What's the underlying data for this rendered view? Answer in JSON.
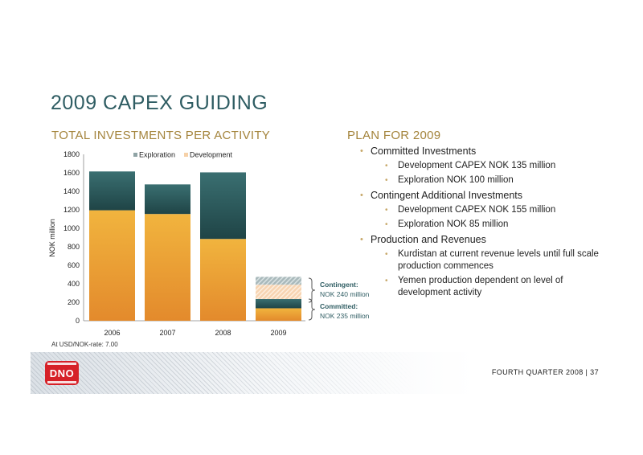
{
  "title": "2009 CAPEX GUIDING",
  "left_section_title": "TOTAL INVESTMENTS PER ACTIVITY",
  "right_section_title": "PLAN FOR 2009",
  "footnote": "At USD/NOK-rate: 7.00",
  "plan": {
    "committed": "Committed Investments",
    "committed_items": [
      "Development CAPEX NOK 135 million",
      "Exploration NOK 100 million"
    ],
    "contingent": "Contingent Additional Investments",
    "contingent_items": [
      "Development CAPEX NOK 155 million",
      "Exploration NOK 85 million"
    ],
    "production": "Production and Revenues",
    "production_items": [
      "Kurdistan at current revenue levels until full scale production commences",
      "Yemen production dependent on level of development activity"
    ]
  },
  "footer": {
    "logo": "DNO",
    "text": "FOURTH QUARTER 2008 |   37"
  },
  "colors": {
    "development": "#e8a535",
    "exploration": "#2e5e60",
    "title": "#2f5d63",
    "section": "#a4843c"
  },
  "chart_data": {
    "type": "bar",
    "stacked": true,
    "categories": [
      "2006",
      "2007",
      "2008",
      "2009"
    ],
    "series": [
      {
        "name": "Development",
        "values": [
          1195,
          1155,
          885,
          135
        ],
        "color": "#e8a535"
      },
      {
        "name": "Exploration",
        "values": [
          420,
          320,
          720,
          100
        ],
        "color": "#2e5e60"
      }
    ],
    "contingent_2009": {
      "development": 155,
      "exploration": 85
    },
    "annotations": [
      {
        "label": "Contingent:",
        "text": "NOK 240 million"
      },
      {
        "label": "Committed:",
        "text": "NOK 235 million"
      }
    ],
    "ylabel": "NOK million",
    "ylim": [
      0,
      1800
    ],
    "yticks": [
      0,
      200,
      400,
      600,
      800,
      1000,
      1200,
      1400,
      1600,
      1800
    ],
    "legend": [
      "Exploration",
      "Development"
    ],
    "legend_position": "top"
  }
}
